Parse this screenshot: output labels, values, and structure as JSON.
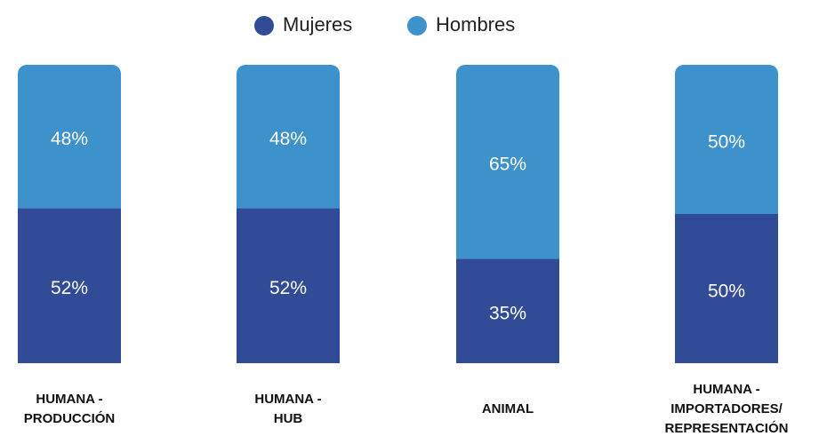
{
  "chart_data": {
    "type": "bar",
    "stacked": true,
    "categories": [
      "HUMANA -\nPRODUCCIÓN",
      "HUMANA -\nHUB",
      "ANIMAL",
      "HUMANA -\nIMPORTADORES/\nREPRESENTACIÓN"
    ],
    "series": [
      {
        "name": "Mujeres",
        "color": "#324b96",
        "values": [
          52,
          52,
          35,
          50
        ],
        "value_labels": [
          "52%",
          "52%",
          "35%",
          "50%"
        ]
      },
      {
        "name": "Hombres",
        "color": "#3e92cc",
        "values": [
          48,
          48,
          65,
          50
        ],
        "value_labels": [
          "48%",
          "48%",
          "65%",
          "50%"
        ]
      }
    ]
  }
}
